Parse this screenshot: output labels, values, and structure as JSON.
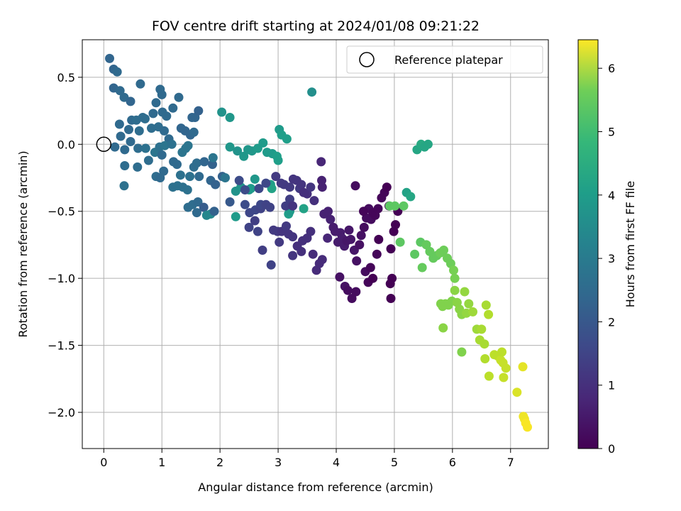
{
  "chart_data": {
    "type": "scatter",
    "title": "FOV centre drift starting at 2024/01/08 09:21:22",
    "xlabel": "Angular distance from reference (arcmin)",
    "ylabel": "Rotation from reference (arcmin)",
    "xlim": [
      -0.37,
      7.65
    ],
    "ylim": [
      -2.27,
      0.78
    ],
    "xticks": [
      0,
      1,
      2,
      3,
      4,
      5,
      6,
      7
    ],
    "yticks": [
      0.5,
      0.0,
      -0.5,
      -1.0,
      -1.5,
      -2.0
    ],
    "ytick_labels": [
      "0.5",
      "0.0",
      "−0.5",
      "−1.0",
      "−1.5",
      "−2.0"
    ],
    "grid": true,
    "legend": {
      "position": "top-right",
      "entries": [
        {
          "label": "Reference platepar",
          "marker": "open-circle"
        }
      ]
    },
    "reference_point": {
      "x": 0.0,
      "y": 0.0
    },
    "colormap": "viridis",
    "colorbar": {
      "label": "Hours from first FF file",
      "range": [
        0,
        6.45
      ],
      "ticks": [
        0,
        1,
        2,
        3,
        4,
        5,
        6
      ]
    },
    "columns": [
      "x",
      "y",
      "hours"
    ],
    "points": [
      [
        0.1,
        0.64,
        2.1
      ],
      [
        0.17,
        0.56,
        2.1
      ],
      [
        0.23,
        0.54,
        2.2
      ],
      [
        0.17,
        0.42,
        2.1
      ],
      [
        0.28,
        0.4,
        2.2
      ],
      [
        0.35,
        0.35,
        2.2
      ],
      [
        0.46,
        0.32,
        2.1
      ],
      [
        0.63,
        0.45,
        2.2
      ],
      [
        0.97,
        0.41,
        2.2
      ],
      [
        1.0,
        0.37,
        2.2
      ],
      [
        1.29,
        0.35,
        2.2
      ],
      [
        0.27,
        0.15,
        2.2
      ],
      [
        0.43,
        0.11,
        2.2
      ],
      [
        0.48,
        0.18,
        2.2
      ],
      [
        0.56,
        0.18,
        2.3
      ],
      [
        0.67,
        0.2,
        2.3
      ],
      [
        0.71,
        0.19,
        2.3
      ],
      [
        0.85,
        0.23,
        2.2
      ],
      [
        0.9,
        0.31,
        2.2
      ],
      [
        1.01,
        0.24,
        2.2
      ],
      [
        1.08,
        0.21,
        2.2
      ],
      [
        1.19,
        0.27,
        2.2
      ],
      [
        1.52,
        0.2,
        2.1
      ],
      [
        1.57,
        0.2,
        2.1
      ],
      [
        1.63,
        0.25,
        2.0
      ],
      [
        0.19,
        -0.02,
        2.2
      ],
      [
        0.29,
        0.06,
        2.2
      ],
      [
        0.36,
        -0.04,
        2.2
      ],
      [
        0.46,
        0.02,
        2.2
      ],
      [
        0.59,
        -0.03,
        2.3
      ],
      [
        0.61,
        0.1,
        2.3
      ],
      [
        0.82,
        0.12,
        2.3
      ],
      [
        0.94,
        0.13,
        2.3
      ],
      [
        1.04,
        0.1,
        2.2
      ],
      [
        1.12,
        0.04,
        2.2
      ],
      [
        1.33,
        0.12,
        2.1
      ],
      [
        1.4,
        0.1,
        2.1
      ],
      [
        1.49,
        0.07,
        2.1
      ],
      [
        1.55,
        0.09,
        2.2
      ],
      [
        0.72,
        -0.03,
        2.4
      ],
      [
        0.88,
        -0.06,
        2.5
      ],
      [
        0.96,
        -0.02,
        2.4
      ],
      [
        1.05,
        -0.01,
        2.5
      ],
      [
        1.17,
        0.0,
        2.4
      ],
      [
        0.36,
        -0.16,
        2.3
      ],
      [
        0.35,
        -0.31,
        2.4
      ],
      [
        0.58,
        -0.17,
        2.3
      ],
      [
        0.77,
        -0.12,
        2.3
      ],
      [
        0.9,
        -0.24,
        2.3
      ],
      [
        0.97,
        -0.25,
        2.2
      ],
      [
        1.0,
        -0.08,
        2.2
      ],
      [
        1.03,
        -0.2,
        2.2
      ],
      [
        1.2,
        -0.13,
        2.2
      ],
      [
        1.26,
        -0.15,
        2.2
      ],
      [
        1.35,
        -0.06,
        2.5
      ],
      [
        1.41,
        -0.03,
        2.5
      ],
      [
        1.45,
        -0.01,
        2.5
      ],
      [
        1.19,
        -0.32,
        2.4
      ],
      [
        1.27,
        -0.31,
        2.4
      ],
      [
        1.36,
        -0.32,
        2.4
      ],
      [
        1.44,
        -0.34,
        2.4
      ],
      [
        1.32,
        -0.23,
        2.4
      ],
      [
        1.48,
        -0.24,
        2.4
      ],
      [
        1.55,
        -0.17,
        2.3
      ],
      [
        1.6,
        -0.14,
        2.3
      ],
      [
        1.64,
        -0.24,
        2.2
      ],
      [
        1.73,
        -0.13,
        2.1
      ],
      [
        1.84,
        -0.27,
        2.1
      ],
      [
        1.87,
        -0.15,
        2.0
      ],
      [
        1.88,
        -0.1,
        2.5
      ],
      [
        1.92,
        -0.3,
        2.0
      ],
      [
        1.45,
        -0.47,
        2.3
      ],
      [
        1.53,
        -0.45,
        2.3
      ],
      [
        1.6,
        -0.51,
        2.2
      ],
      [
        1.62,
        -0.43,
        2.2
      ],
      [
        1.72,
        -0.47,
        1.9
      ],
      [
        1.77,
        -0.53,
        3.0
      ],
      [
        1.84,
        -0.52,
        3.0
      ],
      [
        1.9,
        -0.5,
        2.0
      ],
      [
        2.04,
        -0.24,
        2.0
      ],
      [
        2.09,
        -0.25,
        2.5
      ],
      [
        2.17,
        -0.43,
        1.8
      ],
      [
        2.03,
        0.24,
        3.3
      ],
      [
        2.17,
        0.2,
        3.4
      ],
      [
        2.17,
        -0.02,
        3.4
      ],
      [
        2.3,
        -0.05,
        3.3
      ],
      [
        2.41,
        -0.09,
        3.4
      ],
      [
        2.48,
        -0.04,
        3.4
      ],
      [
        2.55,
        -0.05,
        3.4
      ],
      [
        2.65,
        -0.03,
        3.5
      ],
      [
        2.74,
        0.01,
        3.5
      ],
      [
        2.81,
        -0.06,
        3.5
      ],
      [
        2.9,
        -0.07,
        3.5
      ],
      [
        2.98,
        -0.09,
        3.6
      ],
      [
        3.0,
        -0.12,
        3.6
      ],
      [
        2.27,
        -0.35,
        3.3
      ],
      [
        2.36,
        -0.32,
        3.3
      ],
      [
        2.27,
        -0.54,
        3.5
      ],
      [
        2.5,
        -0.34,
        3.4
      ],
      [
        2.53,
        -0.33,
        3.5
      ],
      [
        2.6,
        -0.26,
        3.4
      ],
      [
        2.87,
        -0.3,
        3.6
      ],
      [
        2.89,
        -0.33,
        3.7
      ],
      [
        3.02,
        0.11,
        3.5
      ],
      [
        3.06,
        0.07,
        3.6
      ],
      [
        3.15,
        0.04,
        3.6
      ],
      [
        3.18,
        -0.52,
        3.6
      ],
      [
        3.2,
        -0.5,
        3.5
      ],
      [
        3.44,
        -0.48,
        3.7
      ],
      [
        3.58,
        0.39,
        3.2
      ],
      [
        2.33,
        -0.27,
        1.5
      ],
      [
        2.43,
        -0.34,
        1.5
      ],
      [
        2.43,
        -0.45,
        1.5
      ],
      [
        2.51,
        -0.51,
        1.4
      ],
      [
        2.61,
        -0.49,
        1.4
      ],
      [
        2.7,
        -0.48,
        1.3
      ],
      [
        2.7,
        -0.45,
        1.4
      ],
      [
        2.79,
        -0.45,
        1.3
      ],
      [
        2.86,
        -0.47,
        1.3
      ],
      [
        2.79,
        -0.29,
        1.4
      ],
      [
        2.67,
        -0.33,
        1.4
      ],
      [
        2.5,
        -0.62,
        1.3
      ],
      [
        2.6,
        -0.57,
        1.2
      ],
      [
        2.65,
        -0.65,
        1.3
      ],
      [
        2.73,
        -0.79,
        1.2
      ],
      [
        2.88,
        -0.9,
        1.3
      ],
      [
        2.92,
        -0.64,
        1.1
      ],
      [
        2.99,
        -0.65,
        1.1
      ],
      [
        3.02,
        -0.73,
        1.1
      ],
      [
        3.06,
        -0.65,
        1.0
      ],
      [
        3.14,
        -0.61,
        1.1
      ],
      [
        3.18,
        -0.67,
        1.0
      ],
      [
        3.13,
        -0.46,
        1.2
      ],
      [
        3.2,
        -0.41,
        1.2
      ],
      [
        3.25,
        -0.46,
        1.0
      ],
      [
        3.25,
        -0.69,
        1.0
      ],
      [
        2.96,
        -0.24,
        1.1
      ],
      [
        3.05,
        -0.29,
        1.1
      ],
      [
        3.1,
        -0.3,
        1.1
      ],
      [
        3.2,
        -0.32,
        1.1
      ],
      [
        3.26,
        -0.26,
        1.0
      ],
      [
        3.32,
        -0.27,
        1.0
      ],
      [
        3.37,
        -0.33,
        1.1
      ],
      [
        3.4,
        -0.3,
        1.0
      ],
      [
        3.44,
        -0.36,
        0.9
      ],
      [
        3.5,
        -0.37,
        0.9
      ],
      [
        3.56,
        -0.32,
        1.0
      ],
      [
        3.62,
        -0.42,
        0.9
      ],
      [
        3.25,
        -0.83,
        1.0
      ],
      [
        3.33,
        -0.76,
        0.9
      ],
      [
        3.42,
        -0.72,
        0.9
      ],
      [
        3.4,
        -0.8,
        0.9
      ],
      [
        3.5,
        -0.7,
        0.9
      ],
      [
        3.56,
        -0.65,
        0.9
      ],
      [
        3.6,
        -0.82,
        0.8
      ],
      [
        3.66,
        -0.94,
        0.8
      ],
      [
        3.71,
        -0.89,
        0.8
      ],
      [
        3.76,
        -0.86,
        0.8
      ],
      [
        3.85,
        -0.7,
        0.7
      ],
      [
        3.74,
        -0.13,
        0.7
      ],
      [
        3.75,
        -0.27,
        0.6
      ],
      [
        3.76,
        -0.32,
        0.6
      ],
      [
        3.79,
        -0.52,
        0.6
      ],
      [
        3.86,
        -0.5,
        0.6
      ],
      [
        3.9,
        -0.56,
        0.6
      ],
      [
        3.95,
        -0.62,
        0.5
      ],
      [
        3.98,
        -0.65,
        0.5
      ],
      [
        4.03,
        -0.73,
        0.5
      ],
      [
        4.07,
        -0.66,
        0.5
      ],
      [
        4.1,
        -0.7,
        0.5
      ],
      [
        4.14,
        -0.76,
        0.5
      ],
      [
        4.18,
        -0.72,
        0.4
      ],
      [
        4.22,
        -0.64,
        0.4
      ],
      [
        4.25,
        -0.71,
        0.4
      ],
      [
        4.31,
        -0.79,
        0.4
      ],
      [
        4.35,
        -0.87,
        0.3
      ],
      [
        4.4,
        -0.75,
        0.3
      ],
      [
        4.43,
        -0.68,
        0.3
      ],
      [
        4.48,
        -0.62,
        0.2
      ],
      [
        4.52,
        -0.55,
        0.2
      ],
      [
        4.56,
        -0.48,
        0.2
      ],
      [
        4.6,
        -0.56,
        0.2
      ],
      [
        4.63,
        -0.51,
        0.1
      ],
      [
        4.67,
        -0.53,
        0.1
      ],
      [
        4.72,
        -0.48,
        0.1
      ],
      [
        4.78,
        -0.4,
        0.1
      ],
      [
        4.83,
        -0.36,
        0.1
      ],
      [
        4.87,
        -0.32,
        0.0
      ],
      [
        4.33,
        -0.31,
        0.2
      ],
      [
        4.47,
        -0.5,
        0.1
      ],
      [
        4.5,
        -0.95,
        0.2
      ],
      [
        4.55,
        -1.03,
        0.1
      ],
      [
        4.59,
        -0.92,
        0.1
      ],
      [
        4.63,
        -1.0,
        0.0
      ],
      [
        4.7,
        -0.82,
        0.1
      ],
      [
        4.73,
        -0.71,
        0.0
      ],
      [
        4.91,
        -0.46,
        0.0
      ],
      [
        4.94,
        -0.78,
        0.0
      ],
      [
        4.96,
        -1.0,
        0.0
      ],
      [
        4.99,
        -0.65,
        0.0
      ],
      [
        5.02,
        -0.6,
        0.0
      ],
      [
        5.06,
        -0.5,
        0.0
      ],
      [
        4.93,
        -1.04,
        0.0
      ],
      [
        4.94,
        -1.15,
        0.0
      ],
      [
        4.06,
        -0.99,
        0.3
      ],
      [
        4.15,
        -1.06,
        0.3
      ],
      [
        4.2,
        -1.09,
        0.2
      ],
      [
        4.27,
        -1.15,
        0.2
      ],
      [
        4.34,
        -1.1,
        0.2
      ],
      [
        4.92,
        -0.46,
        4.8
      ],
      [
        5.01,
        -0.46,
        4.8
      ],
      [
        5.1,
        -0.73,
        4.8
      ],
      [
        5.16,
        -0.46,
        4.8
      ],
      [
        5.21,
        -0.36,
        3.7
      ],
      [
        5.28,
        -0.39,
        3.8
      ],
      [
        5.35,
        -0.82,
        4.8
      ],
      [
        5.39,
        -0.04,
        3.8
      ],
      [
        5.46,
        0.0,
        3.9
      ],
      [
        5.52,
        -0.02,
        3.8
      ],
      [
        5.58,
        0.0,
        3.8
      ],
      [
        5.45,
        -0.73,
        4.8
      ],
      [
        5.48,
        -0.92,
        4.9
      ],
      [
        5.55,
        -0.75,
        4.9
      ],
      [
        5.61,
        -0.8,
        4.9
      ],
      [
        5.67,
        -0.85,
        4.9
      ],
      [
        5.73,
        -0.83,
        4.9
      ],
      [
        5.79,
        -0.81,
        5.0
      ],
      [
        5.85,
        -0.79,
        5.0
      ],
      [
        5.91,
        -0.85,
        5.0
      ],
      [
        5.97,
        -0.89,
        5.0
      ],
      [
        6.02,
        -0.94,
        5.1
      ],
      [
        6.04,
        -1.0,
        5.1
      ],
      [
        5.8,
        -1.19,
        5.2
      ],
      [
        5.83,
        -1.21,
        5.2
      ],
      [
        5.88,
        -1.19,
        5.2
      ],
      [
        5.93,
        -1.2,
        5.2
      ],
      [
        5.99,
        -1.17,
        5.2
      ],
      [
        6.04,
        -1.09,
        5.3
      ],
      [
        6.08,
        -1.18,
        5.3
      ],
      [
        6.12,
        -1.23,
        5.3
      ],
      [
        6.16,
        -1.27,
        5.3
      ],
      [
        6.21,
        -1.1,
        5.4
      ],
      [
        6.24,
        -1.26,
        5.4
      ],
      [
        6.28,
        -1.19,
        5.4
      ],
      [
        5.84,
        -1.37,
        5.3
      ],
      [
        6.16,
        -1.55,
        5.2
      ],
      [
        6.35,
        -1.25,
        5.5
      ],
      [
        6.42,
        -1.38,
        5.5
      ],
      [
        6.47,
        -1.46,
        5.6
      ],
      [
        6.5,
        -1.38,
        5.6
      ],
      [
        6.55,
        -1.49,
        5.6
      ],
      [
        6.58,
        -1.2,
        5.6
      ],
      [
        6.62,
        -1.27,
        5.7
      ],
      [
        6.56,
        -1.6,
        5.7
      ],
      [
        6.63,
        -1.73,
        5.8
      ],
      [
        6.72,
        -1.57,
        5.8
      ],
      [
        6.78,
        -1.58,
        5.8
      ],
      [
        6.83,
        -1.61,
        5.9
      ],
      [
        6.87,
        -1.63,
        5.9
      ],
      [
        6.92,
        -1.67,
        5.9
      ],
      [
        6.85,
        -1.55,
        5.8
      ],
      [
        6.88,
        -1.74,
        5.9
      ],
      [
        7.11,
        -1.85,
        6.1
      ],
      [
        7.21,
        -1.66,
        6.2
      ],
      [
        7.22,
        -2.03,
        6.3
      ],
      [
        7.24,
        -2.05,
        6.3
      ],
      [
        7.26,
        -2.08,
        6.4
      ],
      [
        7.29,
        -2.11,
        6.4
      ]
    ]
  }
}
